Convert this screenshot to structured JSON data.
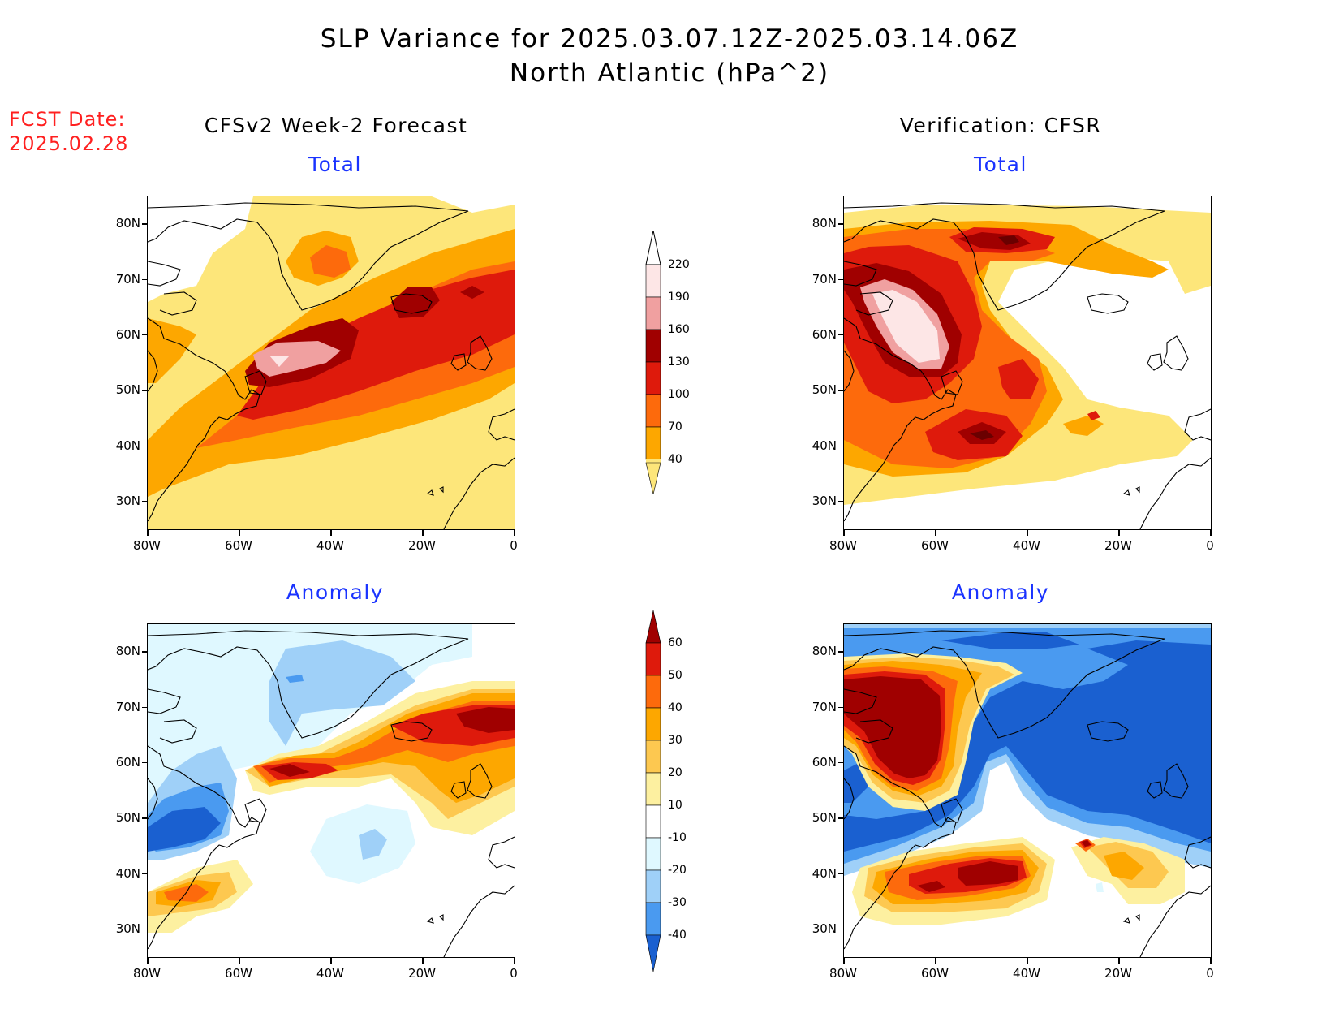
{
  "title": {
    "line1": "SLP Variance for 2025.03.07.12Z-2025.03.14.06Z",
    "line2": "North Atlantic (hPa^2)"
  },
  "fcst": {
    "label": "FCST Date:",
    "date": "2025.02.28"
  },
  "columns": {
    "left": "CFSv2 Week-2 Forecast",
    "right": "Verification: CFSR"
  },
  "panels": {
    "total": "Total",
    "anomaly": "Anomaly"
  },
  "axes": {
    "lat_labels": [
      "80N",
      "70N",
      "60N",
      "50N",
      "40N",
      "30N"
    ],
    "lon_labels": [
      "80W",
      "60W",
      "40W",
      "20W",
      "0"
    ]
  },
  "colorbar_total": {
    "levels": [
      "220",
      "190",
      "160",
      "130",
      "100",
      "70",
      "40"
    ],
    "colors": [
      "#fde6e6",
      "#f0a0a0",
      "#a00000",
      "#de1a0c",
      "#fd6a0c",
      "#fda700",
      "#fde67a",
      "#ffffff"
    ]
  },
  "colorbar_anomaly": {
    "levels": [
      "60",
      "50",
      "40",
      "30",
      "20",
      "10",
      "-10",
      "-20",
      "-30",
      "-40"
    ],
    "colors": [
      "#a00000",
      "#de1a0c",
      "#fd6a0c",
      "#fda700",
      "#fdc850",
      "#fdf0a0",
      "#ffffff",
      "#dff8ff",
      "#9fd0f8",
      "#4a9af0",
      "#1a60d0"
    ]
  }
}
